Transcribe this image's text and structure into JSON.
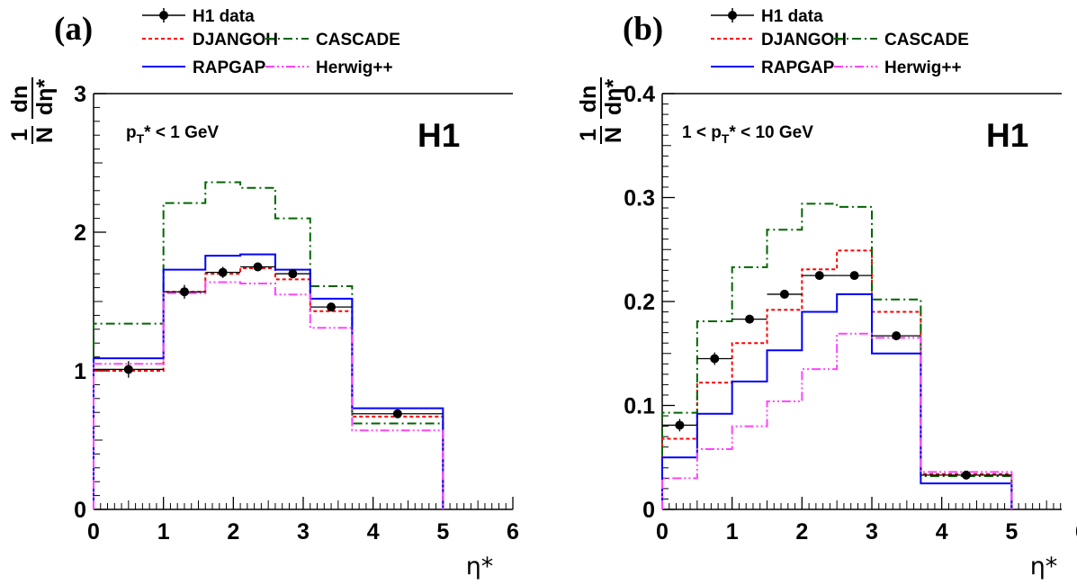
{
  "legend": {
    "data": "H1 data",
    "djangoh": "DJANGOH",
    "cascade": "CASCADE",
    "rapgap": "RAPGAP",
    "herwig": "Herwig++"
  },
  "styles": {
    "djangoh": {
      "color": "#ff0000",
      "dash": "4,3"
    },
    "cascade": {
      "color": "#006600",
      "dash": "10,4,2,4"
    },
    "rapgap": {
      "color": "#0000ff",
      "dash": ""
    },
    "herwig": {
      "color": "#ff44ff",
      "dash": "10,3,2,3,2,3"
    },
    "data": {
      "color": "#000000"
    }
  },
  "ylabel": {
    "num": "1",
    "dn": "dn",
    "N": "N",
    "deta": "dη*"
  },
  "xlabel": "η*",
  "chart_data": [
    {
      "type": "line",
      "panel": "(a)",
      "watermark": "H1",
      "cut": "p_T* < 1 GeV",
      "xlabel": "η*",
      "ylabel": "1/N dn/dη*",
      "xlim": [
        0,
        6
      ],
      "ylim": [
        0,
        3
      ],
      "xticks": [
        0,
        1,
        2,
        3,
        4,
        5,
        6
      ],
      "yticks": [
        0,
        1,
        2,
        3
      ],
      "bin_edges": [
        0,
        1,
        1.6,
        2.1,
        2.6,
        3.1,
        3.7,
        5
      ],
      "series": [
        {
          "name": "DJANGOH",
          "values": [
            1.0,
            1.57,
            1.7,
            1.74,
            1.66,
            1.43,
            0.67
          ]
        },
        {
          "name": "CASCADE",
          "values": [
            1.34,
            2.21,
            2.36,
            2.32,
            2.1,
            1.61,
            0.62
          ]
        },
        {
          "name": "RAPGAP",
          "values": [
            1.09,
            1.73,
            1.83,
            1.84,
            1.73,
            1.52,
            0.73
          ]
        },
        {
          "name": "Herwig++",
          "values": [
            1.05,
            1.56,
            1.64,
            1.63,
            1.55,
            1.31,
            0.57
          ]
        }
      ],
      "data_points": {
        "name": "H1 data",
        "x": [
          0.5,
          1.3,
          1.85,
          2.35,
          2.85,
          3.4,
          4.35
        ],
        "y": [
          1.01,
          1.57,
          1.71,
          1.75,
          1.7,
          1.46,
          0.69
        ],
        "xerr": [
          0.5,
          0.3,
          0.25,
          0.25,
          0.25,
          0.3,
          0.65
        ],
        "yerr": [
          0.06,
          0.05,
          0.04,
          0.03,
          0.03,
          0.03,
          0.02
        ]
      }
    },
    {
      "type": "line",
      "panel": "(b)",
      "watermark": "H1",
      "cut": "1 < p_T* < 10 GeV",
      "xlabel": "η*",
      "ylabel": "1/N dn/dη*",
      "xlim": [
        0,
        6
      ],
      "ylim": [
        0,
        0.4
      ],
      "xticks": [
        0,
        1,
        2,
        3,
        4,
        5,
        6
      ],
      "yticks": [
        0,
        0.1,
        0.2,
        0.3,
        0.4
      ],
      "bin_edges": [
        0,
        0.5,
        1,
        1.5,
        2,
        2.5,
        3,
        3.7,
        5
      ],
      "series": [
        {
          "name": "DJANGOH",
          "values": [
            0.068,
            0.122,
            0.16,
            0.192,
            0.231,
            0.249,
            0.19,
            0.034
          ]
        },
        {
          "name": "CASCADE",
          "values": [
            0.093,
            0.181,
            0.233,
            0.269,
            0.294,
            0.291,
            0.202,
            0.032
          ]
        },
        {
          "name": "RAPGAP",
          "values": [
            0.05,
            0.092,
            0.123,
            0.153,
            0.19,
            0.207,
            0.15,
            0.025
          ]
        },
        {
          "name": "Herwig++",
          "values": [
            0.03,
            0.058,
            0.08,
            0.104,
            0.135,
            0.169,
            0.165,
            0.036
          ]
        }
      ],
      "data_points": {
        "name": "H1 data",
        "x": [
          0.25,
          0.75,
          1.25,
          1.75,
          2.25,
          2.75,
          3.35,
          4.35
        ],
        "y": [
          0.081,
          0.145,
          0.183,
          0.207,
          0.225,
          0.225,
          0.167,
          0.033
        ],
        "xerr": [
          0.25,
          0.25,
          0.25,
          0.25,
          0.25,
          0.25,
          0.35,
          0.65
        ],
        "yerr": [
          0.006,
          0.006,
          0.004,
          0.004,
          0.004,
          0.003,
          0.003,
          0.002
        ]
      }
    }
  ]
}
